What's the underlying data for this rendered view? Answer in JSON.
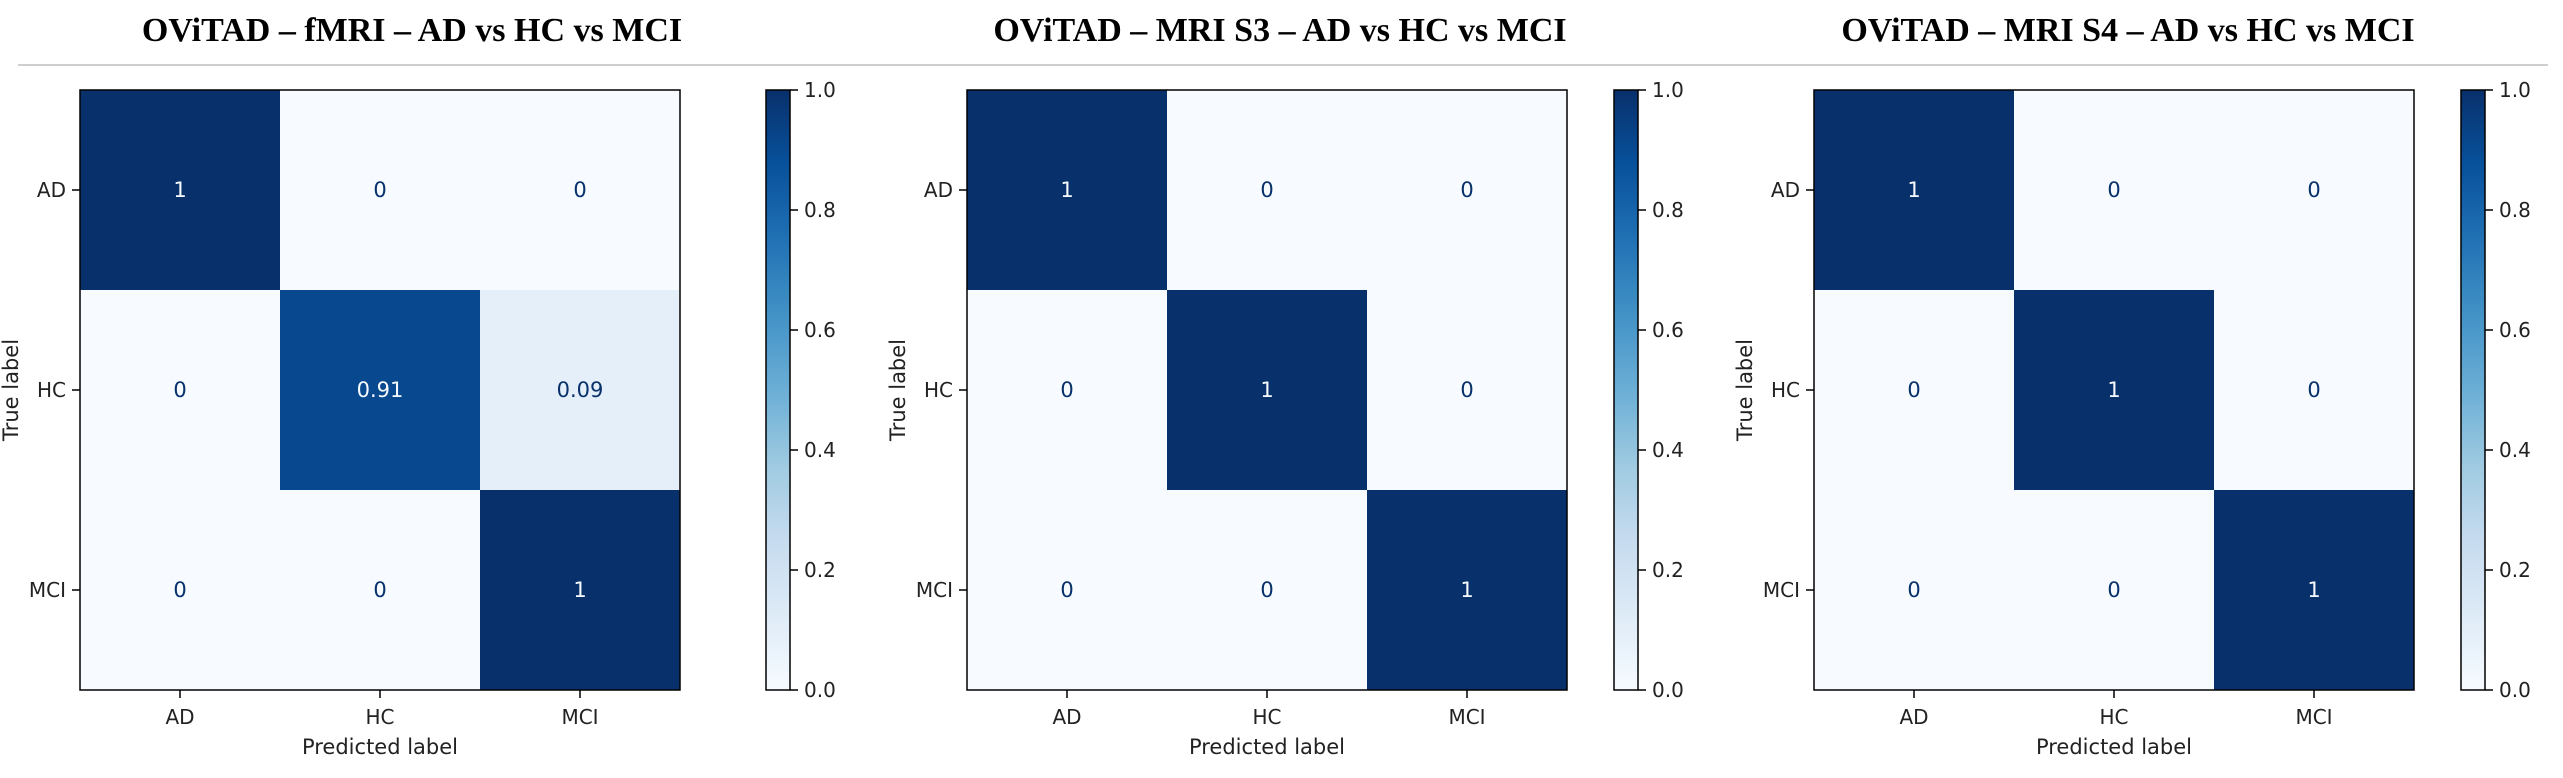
{
  "colors": {
    "cmap_low": "#f7fbff",
    "cmap_high": "#08306b",
    "text_on_dark": "#f7fbff",
    "text_on_light": "#08306b",
    "divider": "#cfcfcf"
  },
  "chart_data": [
    {
      "type": "heatmap",
      "title": "OViTAD – fMRI – AD vs HC vs MCI",
      "xlabel": "Predicted label",
      "ylabel": "True label",
      "categories": [
        "AD",
        "HC",
        "MCI"
      ],
      "matrix": [
        [
          1,
          0,
          0
        ],
        [
          0,
          0.91,
          0.09
        ],
        [
          0,
          0,
          1
        ]
      ],
      "cell_labels": [
        [
          "1",
          "0",
          "0"
        ],
        [
          "0",
          "0.91",
          "0.09"
        ],
        [
          "0",
          "0",
          "1"
        ]
      ],
      "colorbar": {
        "range": [
          0,
          1
        ],
        "ticks": [
          "0.0",
          "0.2",
          "0.4",
          "0.6",
          "0.8",
          "1.0"
        ]
      }
    },
    {
      "type": "heatmap",
      "title": "OViTAD – MRI S3 – AD vs HC vs MCI",
      "xlabel": "Predicted label",
      "ylabel": "True label",
      "categories": [
        "AD",
        "HC",
        "MCI"
      ],
      "matrix": [
        [
          1,
          0,
          0
        ],
        [
          0,
          1,
          0
        ],
        [
          0,
          0,
          1
        ]
      ],
      "cell_labels": [
        [
          "1",
          "0",
          "0"
        ],
        [
          "0",
          "1",
          "0"
        ],
        [
          "0",
          "0",
          "1"
        ]
      ],
      "colorbar": {
        "range": [
          0,
          1
        ],
        "ticks": [
          "0.0",
          "0.2",
          "0.4",
          "0.6",
          "0.8",
          "1.0"
        ]
      }
    },
    {
      "type": "heatmap",
      "title": "OViTAD – MRI S4 – AD vs HC vs MCI",
      "xlabel": "Predicted label",
      "ylabel": "True label",
      "categories": [
        "AD",
        "HC",
        "MCI"
      ],
      "matrix": [
        [
          1,
          0,
          0
        ],
        [
          0,
          1,
          0
        ],
        [
          0,
          0,
          1
        ]
      ],
      "cell_labels": [
        [
          "1",
          "0",
          "0"
        ],
        [
          "0",
          "1",
          "0"
        ],
        [
          "0",
          "0",
          "1"
        ]
      ],
      "colorbar": {
        "range": [
          0,
          1
        ],
        "ticks": [
          "0.0",
          "0.2",
          "0.4",
          "0.6",
          "0.8",
          "1.0"
        ]
      }
    }
  ]
}
